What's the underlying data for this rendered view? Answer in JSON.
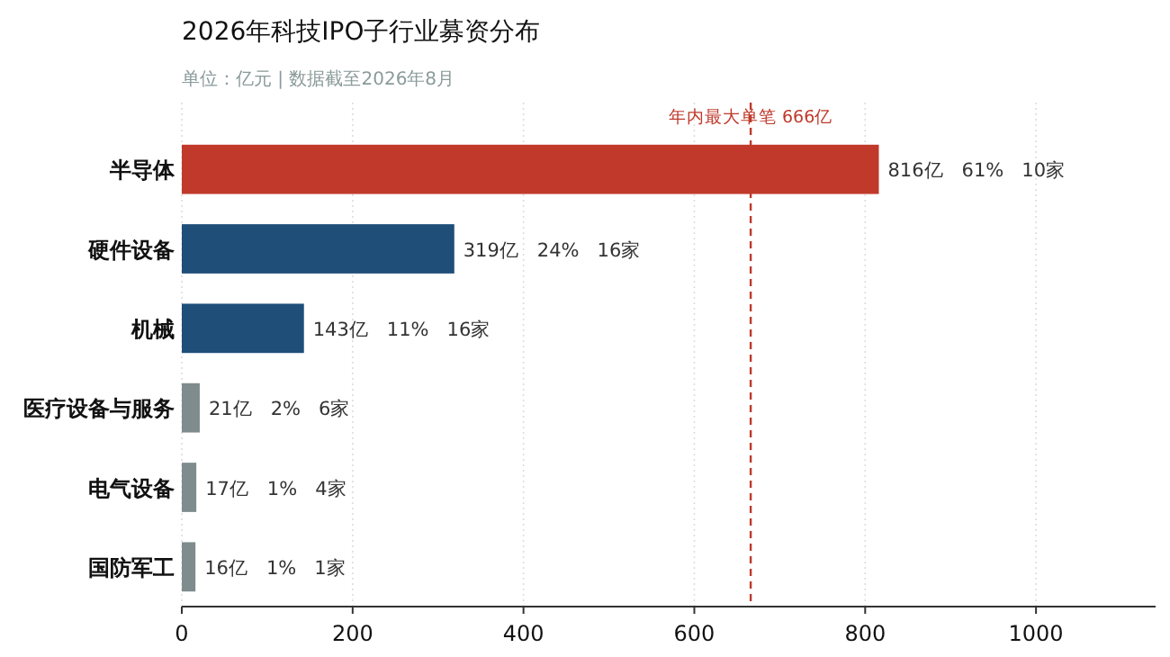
{
  "chart_data": {
    "type": "bar",
    "orientation": "horizontal",
    "title": "2026年科技IPO子行业募资分布",
    "subtitle": "单位：亿元 | 数据截至2026年8月",
    "categories": [
      "半导体",
      "硬件设备",
      "机械",
      "医疗设备与服务",
      "电气设备",
      "国防军工"
    ],
    "values": [
      816,
      319,
      143,
      21,
      17,
      16
    ],
    "colors": [
      "#c0392b",
      "#1f4e79",
      "#1f4e79",
      "#7f8c8d",
      "#7f8c8d",
      "#7f8c8d"
    ],
    "value_labels": [
      "816亿   61%   10家",
      "319亿   24%   16家",
      "143亿   11%   16家",
      "21亿   2%   6家",
      "17亿   1%   4家",
      "16亿   1%   1家"
    ],
    "xlim": [
      0,
      1140
    ],
    "xticks": [
      0,
      200,
      400,
      600,
      800,
      1000
    ],
    "grid": "x",
    "ref_lines": [
      {
        "axis": "x",
        "value": 666,
        "label": "年内最大单笔 666亿",
        "color": "#c0392b",
        "line_style": "dashed"
      }
    ]
  }
}
